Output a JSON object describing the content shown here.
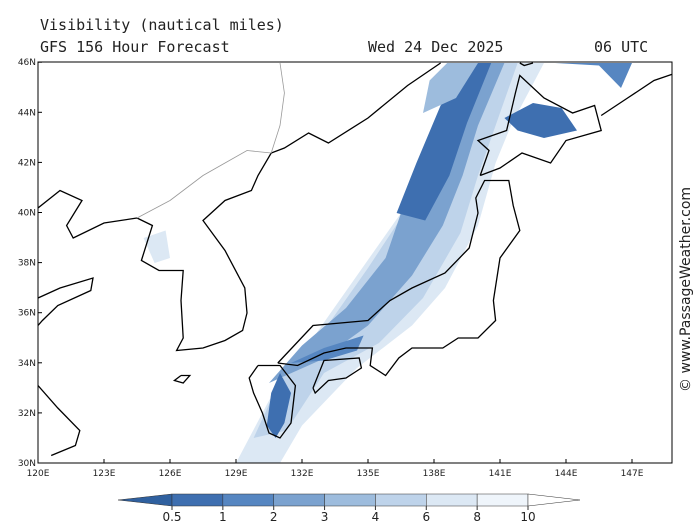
{
  "header": {
    "title": "Visibility (nautical miles)",
    "subtitle": "GFS 156 Hour Forecast",
    "date": "Wed 24 Dec 2025",
    "time": "06 UTC"
  },
  "credit": "© www.PassageWeather.com",
  "lat_labels": [
    "30N",
    "32N",
    "34N",
    "36N",
    "38N",
    "40N",
    "42N",
    "44N",
    "46N"
  ],
  "lon_labels": [
    "120E",
    "123E",
    "126E",
    "129E",
    "132E",
    "135E",
    "138E",
    "141E",
    "144E",
    "147E"
  ],
  "colorbar": {
    "levels": [
      0.5,
      1,
      2,
      3,
      4,
      6,
      8,
      10
    ],
    "colors": [
      "#2f609f",
      "#3e6fb0",
      "#5686c1",
      "#7ba2cf",
      "#9dbcdd",
      "#bed3ea",
      "#dce8f4",
      "#eff5fb",
      "#ffffff"
    ]
  }
}
